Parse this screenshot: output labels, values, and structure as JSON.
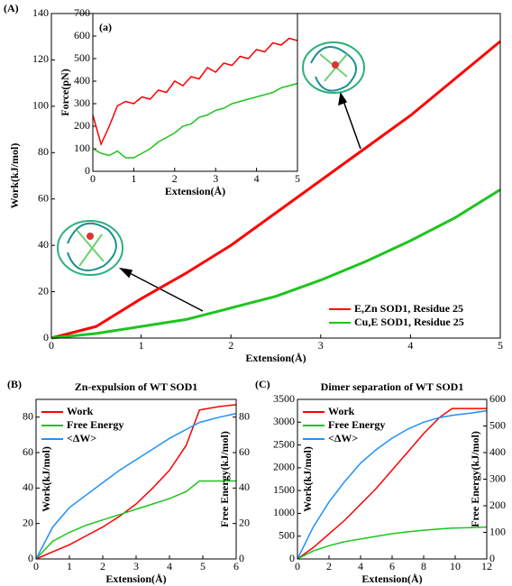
{
  "chart_data": [
    {
      "type": "line",
      "panel_label": "(A)",
      "x_label": "Extension(Å)",
      "y_label": "Work(kJ/mol)",
      "x": [
        0,
        0.5,
        1,
        1.5,
        2,
        2.5,
        3,
        3.5,
        4,
        4.5,
        5
      ],
      "series": [
        {
          "name": "E,Zn SOD1,  Residue 25",
          "color": "#ff0000",
          "values": [
            0,
            5,
            17,
            28,
            40,
            54,
            68,
            82,
            96,
            112,
            128
          ]
        },
        {
          "name": "Cu,E SOD1,  Residue 25",
          "color": "#1fc41f",
          "values": [
            0,
            2,
            5,
            8,
            13,
            18,
            25,
            33,
            42,
            52,
            64
          ]
        }
      ],
      "xlim": [
        0,
        5
      ],
      "xticks": [
        0,
        1,
        2,
        3,
        4,
        5
      ],
      "ylim": [
        0,
        140
      ],
      "yticks": [
        0,
        20,
        40,
        60,
        80,
        100,
        120,
        140
      ],
      "legend": "lower right"
    },
    {
      "type": "line",
      "panel_label": "(a)",
      "x_label": "Extension(Å)",
      "y_label": "Force(pN)",
      "x": [
        0,
        0.2,
        0.4,
        0.6,
        0.8,
        1,
        1.2,
        1.4,
        1.6,
        1.8,
        2,
        2.2,
        2.4,
        2.6,
        2.8,
        3,
        3.2,
        3.4,
        3.6,
        3.8,
        4,
        4.2,
        4.4,
        4.6,
        4.8,
        5
      ],
      "series": [
        {
          "color": "#ff0000",
          "values": [
            250,
            120,
            200,
            290,
            310,
            300,
            330,
            320,
            360,
            350,
            400,
            380,
            420,
            410,
            460,
            440,
            480,
            470,
            510,
            500,
            540,
            530,
            570,
            560,
            590,
            580
          ]
        },
        {
          "color": "#1fc41f",
          "values": [
            100,
            80,
            70,
            90,
            60,
            60,
            80,
            100,
            130,
            150,
            170,
            200,
            210,
            240,
            250,
            270,
            280,
            300,
            310,
            320,
            330,
            340,
            350,
            370,
            380,
            390
          ]
        }
      ],
      "xlim": [
        0,
        5
      ],
      "xticks": [
        0,
        1,
        2,
        3,
        4,
        5
      ],
      "ylim": [
        0,
        700
      ],
      "yticks": [
        0,
        100,
        200,
        300,
        400,
        500,
        600,
        700
      ]
    },
    {
      "type": "line",
      "panel_label": "(B)",
      "title": "Zn-expulsion of WT SOD1",
      "x_label": "Extension(Å)",
      "y_label": "Work(kJ/mol)",
      "y2_label": "Free Energy(kJ/mol)",
      "x": [
        0,
        0.5,
        1,
        1.5,
        2,
        2.5,
        3,
        3.5,
        4,
        4.5,
        4.9,
        5.5,
        6
      ],
      "series": [
        {
          "name": "Work",
          "color": "#ff0000",
          "values": [
            0,
            4,
            8,
            13,
            18,
            24,
            31,
            40,
            50,
            64,
            84,
            86,
            87
          ]
        },
        {
          "name": "Free Energy",
          "color": "#1fc41f",
          "axis": "y2",
          "values": [
            0,
            10,
            15,
            19,
            22,
            25,
            28,
            31,
            34,
            38,
            44,
            44,
            44
          ]
        },
        {
          "name": "<ΔW>",
          "color": "#1e90ff",
          "values": [
            0,
            18,
            29,
            36,
            43,
            50,
            56,
            62,
            68,
            73,
            77,
            80,
            82
          ]
        }
      ],
      "xlim": [
        0,
        6
      ],
      "xticks": [
        0,
        1,
        2,
        3,
        4,
        5,
        6
      ],
      "ylim": [
        0,
        90
      ],
      "yticks": [
        0,
        20,
        40,
        60,
        80
      ],
      "y2lim": [
        0,
        90
      ],
      "y2ticks": [
        0,
        20,
        40,
        60,
        80
      ],
      "legend": "upper left"
    },
    {
      "type": "line",
      "panel_label": "(C)",
      "title": "Dimer separation of WT SOD1",
      "x_label": "Extension(Å)",
      "y_label": "Work(kJ/mol)",
      "y2_label": "Free Energy(kJ/mol)",
      "x": [
        0,
        1,
        2,
        3,
        4,
        5,
        6,
        7,
        8,
        9,
        9.8,
        11,
        12
      ],
      "series": [
        {
          "name": "Work",
          "color": "#ff0000",
          "values": [
            0,
            250,
            550,
            850,
            1200,
            1550,
            1950,
            2350,
            2750,
            3100,
            3300,
            3300,
            3300
          ]
        },
        {
          "name": "Free Energy",
          "color": "#1fc41f",
          "axis": "y2",
          "values": [
            0,
            30,
            50,
            65,
            75,
            85,
            95,
            102,
            108,
            113,
            116,
            118,
            120
          ]
        },
        {
          "name": "<ΔW>",
          "color": "#1e90ff",
          "values": [
            0,
            700,
            1250,
            1700,
            2100,
            2400,
            2650,
            2850,
            3000,
            3100,
            3150,
            3200,
            3250
          ]
        }
      ],
      "xlim": [
        0,
        12
      ],
      "xticks": [
        0,
        2,
        4,
        6,
        8,
        10,
        12
      ],
      "ylim": [
        0,
        3500
      ],
      "yticks": [
        0,
        500,
        1000,
        1500,
        2000,
        2500,
        3000,
        3500
      ],
      "y2lim": [
        0,
        600
      ],
      "y2ticks": [
        0,
        100,
        200,
        300,
        400,
        500,
        600
      ],
      "legend": "upper left"
    }
  ]
}
